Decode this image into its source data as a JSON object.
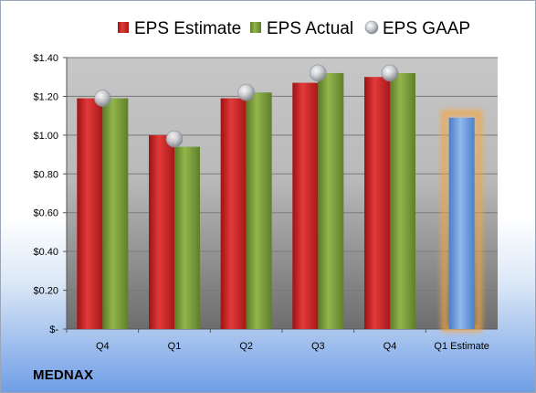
{
  "company": "MEDNAX",
  "chart_data": {
    "type": "bar",
    "categories": [
      "Q4",
      "Q1",
      "Q2",
      "Q3",
      "Q4",
      "Q1 Estimate"
    ],
    "series": [
      {
        "name": "EPS Estimate",
        "values": [
          1.19,
          1.0,
          1.19,
          1.27,
          1.3,
          null
        ]
      },
      {
        "name": "EPS Actual",
        "values": [
          1.19,
          0.94,
          1.22,
          1.32,
          1.32,
          null
        ]
      },
      {
        "name": "EPS GAAP",
        "values": [
          1.19,
          0.98,
          1.22,
          1.32,
          1.32,
          null
        ]
      }
    ],
    "estimate": {
      "category": "Q1 Estimate",
      "value": 1.09
    },
    "ylim": [
      0,
      1.4
    ],
    "yticks": [
      0,
      0.2,
      0.4,
      0.6,
      0.8,
      1.0,
      1.2,
      1.4
    ],
    "ytick_labels": [
      "$-",
      "$0.20",
      "$0.40",
      "$0.60",
      "$0.80",
      "$1.00",
      "$1.20",
      "$1.40"
    ],
    "legend_position": "top",
    "grid": true,
    "colors": {
      "estimate": "#d42a2a",
      "actual": "#7fa13a",
      "gaap": "#b8bcc4",
      "future": "#6e9fde",
      "future_glow": "#f5a43f"
    }
  }
}
